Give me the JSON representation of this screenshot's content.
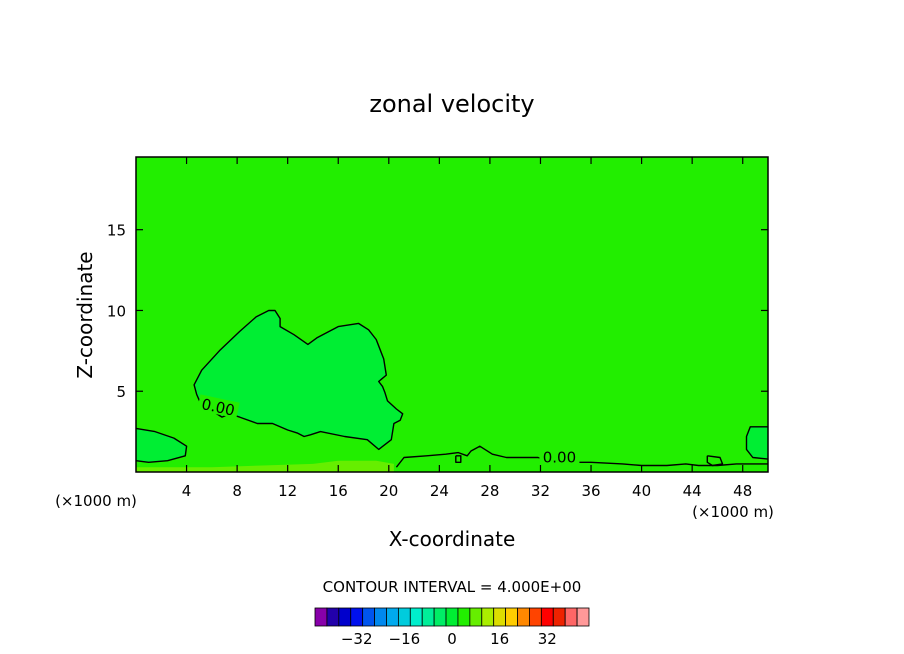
{
  "chart_data": {
    "type": "contour",
    "title": "zonal velocity",
    "xlabel": "X-coordinate",
    "ylabel": "Z-coordinate",
    "x_unit": "(×1000 m)",
    "z_unit": "(×1000 m)",
    "xlim": [
      0,
      50
    ],
    "ylim": [
      0,
      19.5
    ],
    "x_ticks": [
      4,
      8,
      12,
      16,
      20,
      24,
      28,
      32,
      36,
      40,
      44,
      48
    ],
    "y_ticks": [
      5,
      10,
      15
    ],
    "contour_interval_text": "CONTOUR INTERVAL = 4.000E+00",
    "contour_interval": 4.0,
    "contour_label": "0.00",
    "background_level": 0,
    "background_color": "#22ee00",
    "contours": [
      {
        "name": "zero-contour-blob",
        "label": "0.00",
        "fill": "#00ee33",
        "points": [
          [
            4.8,
            4.8
          ],
          [
            4.6,
            5.4
          ],
          [
            5.2,
            6.3
          ],
          [
            6.6,
            7.5
          ],
          [
            8.2,
            8.7
          ],
          [
            9.5,
            9.6
          ],
          [
            10.5,
            10.0
          ],
          [
            11.0,
            10.0
          ],
          [
            11.4,
            9.5
          ],
          [
            11.4,
            9.0
          ],
          [
            12.5,
            8.5
          ],
          [
            13.6,
            7.9
          ],
          [
            14.3,
            8.3
          ],
          [
            16.0,
            9.0
          ],
          [
            17.6,
            9.2
          ],
          [
            18.4,
            8.8
          ],
          [
            19.0,
            8.2
          ],
          [
            19.6,
            7.0
          ],
          [
            19.8,
            6.0
          ],
          [
            19.2,
            5.6
          ],
          [
            19.5,
            5.3
          ],
          [
            19.7,
            4.9
          ],
          [
            19.9,
            4.4
          ],
          [
            20.6,
            3.9
          ],
          [
            21.1,
            3.6
          ],
          [
            20.9,
            3.2
          ],
          [
            20.4,
            3.0
          ],
          [
            20.2,
            2.0
          ],
          [
            19.2,
            1.4
          ],
          [
            18.3,
            2.0
          ],
          [
            16.5,
            2.2
          ],
          [
            14.6,
            2.5
          ],
          [
            13.8,
            2.3
          ],
          [
            13.3,
            2.2
          ],
          [
            12.8,
            2.4
          ],
          [
            12.0,
            2.6
          ],
          [
            10.8,
            3.0
          ],
          [
            9.6,
            3.0
          ],
          [
            8.2,
            3.4
          ],
          [
            7.4,
            3.6
          ],
          [
            6.8,
            3.4
          ],
          [
            6.0,
            3.8
          ],
          [
            5.2,
            4.1
          ],
          [
            4.8,
            4.8
          ]
        ]
      },
      {
        "name": "zero-contour-left-edge",
        "fill": "#00ee33",
        "points": [
          [
            0,
            2.7
          ],
          [
            1.5,
            2.5
          ],
          [
            3.0,
            2.1
          ],
          [
            4.0,
            1.6
          ],
          [
            3.9,
            1.0
          ],
          [
            2.5,
            0.7
          ],
          [
            1.0,
            0.6
          ],
          [
            0,
            0.7
          ]
        ]
      },
      {
        "name": "zero-contour-right-edge",
        "fill": "#00ee33",
        "points": [
          [
            50,
            2.8
          ],
          [
            48.6,
            2.8
          ],
          [
            48.3,
            2.2
          ],
          [
            48.3,
            1.4
          ],
          [
            48.8,
            0.9
          ],
          [
            50,
            0.8
          ]
        ]
      },
      {
        "name": "zero-contour-bottom-ridge",
        "fill": "none",
        "points": [
          [
            20.6,
            0.3
          ],
          [
            21.2,
            0.9
          ],
          [
            23.0,
            1.0
          ],
          [
            24.5,
            1.1
          ],
          [
            25.5,
            1.2
          ],
          [
            26.2,
            1.0
          ],
          [
            26.5,
            1.3
          ],
          [
            27.2,
            1.6
          ],
          [
            28.2,
            1.1
          ],
          [
            29.3,
            0.9
          ],
          [
            30.5,
            0.9
          ],
          [
            31.8,
            0.9
          ],
          [
            33.0,
            0.6
          ],
          [
            36.0,
            0.6
          ],
          [
            38.5,
            0.5
          ],
          [
            40.0,
            0.4
          ],
          [
            42.0,
            0.4
          ],
          [
            43.5,
            0.5
          ],
          [
            44.5,
            0.4
          ],
          [
            46.0,
            0.4
          ],
          [
            47.5,
            0.5
          ],
          [
            48.3,
            0.5
          ],
          [
            50,
            0.5
          ]
        ]
      },
      {
        "name": "zero-contour-bump-a",
        "fill": "none",
        "points": [
          [
            25.3,
            1.0
          ],
          [
            25.7,
            1.0
          ],
          [
            25.7,
            0.6
          ],
          [
            25.3,
            0.6
          ],
          [
            25.3,
            1.0
          ]
        ]
      },
      {
        "name": "zero-contour-bump-b",
        "fill": "none",
        "points": [
          [
            45.2,
            1.0
          ],
          [
            46.2,
            0.9
          ],
          [
            46.4,
            0.5
          ],
          [
            45.6,
            0.4
          ],
          [
            45.2,
            0.6
          ],
          [
            45.2,
            1.0
          ]
        ]
      }
    ],
    "near_surface_band": {
      "fill": "#66ee00",
      "points": [
        [
          0,
          0
        ],
        [
          0,
          0.3
        ],
        [
          6.0,
          0.3
        ],
        [
          10.0,
          0.4
        ],
        [
          14.0,
          0.5
        ],
        [
          16.0,
          0.7
        ],
        [
          19.0,
          0.7
        ],
        [
          20.4,
          0.5
        ],
        [
          20.4,
          0
        ],
        [
          0,
          0
        ]
      ]
    },
    "colorbar": {
      "colors": [
        "#8800aa",
        "#2200aa",
        "#0000cc",
        "#0011ee",
        "#0055ee",
        "#0088ee",
        "#00aaee",
        "#00ccdd",
        "#00eecc",
        "#00ee99",
        "#00ee66",
        "#00ee33",
        "#22ee00",
        "#66ee00",
        "#aaee00",
        "#dddd00",
        "#ffcc00",
        "#ff8800",
        "#ff4400",
        "#ff0000",
        "#ee2200",
        "#ff6666",
        "#ff9999"
      ],
      "tick_labels": [
        "-32",
        "-16",
        "0",
        "16",
        "32"
      ],
      "tick_values": [
        -32,
        -16,
        0,
        16,
        32
      ]
    }
  }
}
